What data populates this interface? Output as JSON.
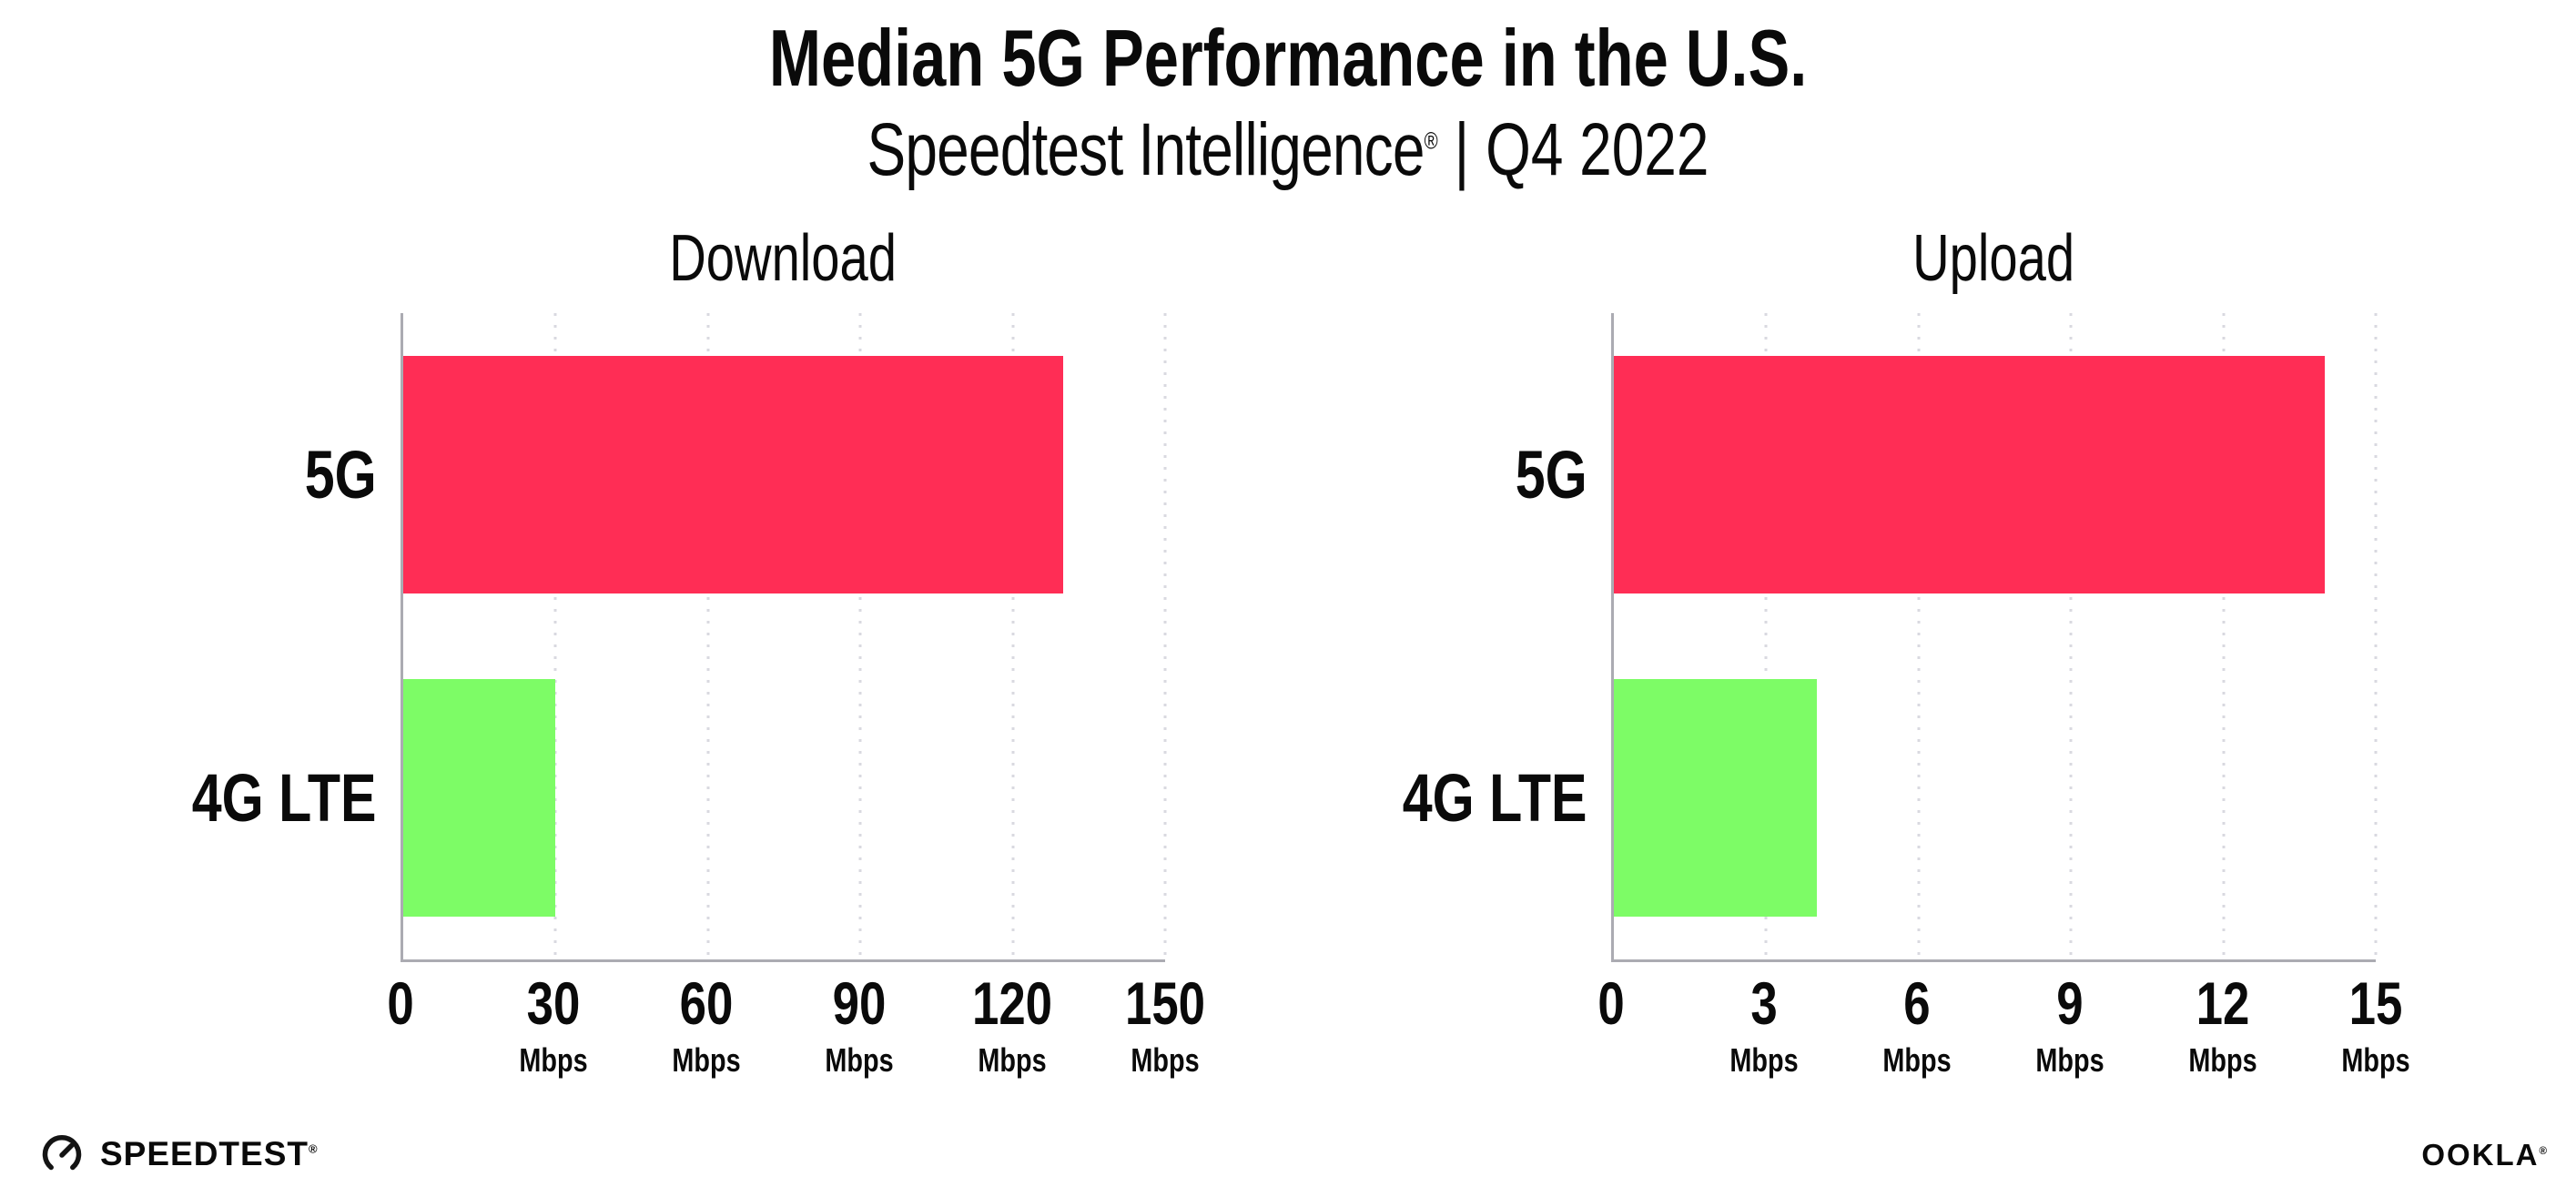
{
  "header": {
    "title": "Median 5G Performance in the U.S.",
    "subtitle_brand": "Speedtest Intelligence",
    "subtitle_reg": "®",
    "subtitle_period": "| Q4 2022"
  },
  "chart_data": [
    {
      "type": "bar",
      "orientation": "horizontal",
      "title": "Download",
      "categories": [
        "5G",
        "4G LTE"
      ],
      "values": [
        130,
        30
      ],
      "unit": "Mbps",
      "xlim": [
        0,
        150
      ],
      "xticks": [
        0,
        30,
        60,
        90,
        120,
        150
      ],
      "bar_colors": [
        "#ff2d55",
        "#7dfc66"
      ],
      "grid": "vertical-dotted",
      "legend": "none"
    },
    {
      "type": "bar",
      "orientation": "horizontal",
      "title": "Upload",
      "categories": [
        "5G",
        "4G LTE"
      ],
      "values": [
        14,
        4
      ],
      "unit": "Mbps",
      "xlim": [
        0,
        15
      ],
      "xticks": [
        0,
        3,
        6,
        9,
        12,
        15
      ],
      "bar_colors": [
        "#ff2d55",
        "#7dfc66"
      ],
      "grid": "vertical-dotted",
      "legend": "none"
    }
  ],
  "footer": {
    "speedtest_label": "SPEEDTEST",
    "speedtest_reg": "®",
    "ookla_label": "OOKLA",
    "ookla_reg": "®"
  },
  "colors": {
    "bar_5g": "#ff2d55",
    "bar_4g_lte": "#7dfc66",
    "axis": "#ababb2",
    "gridline": "#d9d9e0",
    "text": "#0a0a0a"
  }
}
